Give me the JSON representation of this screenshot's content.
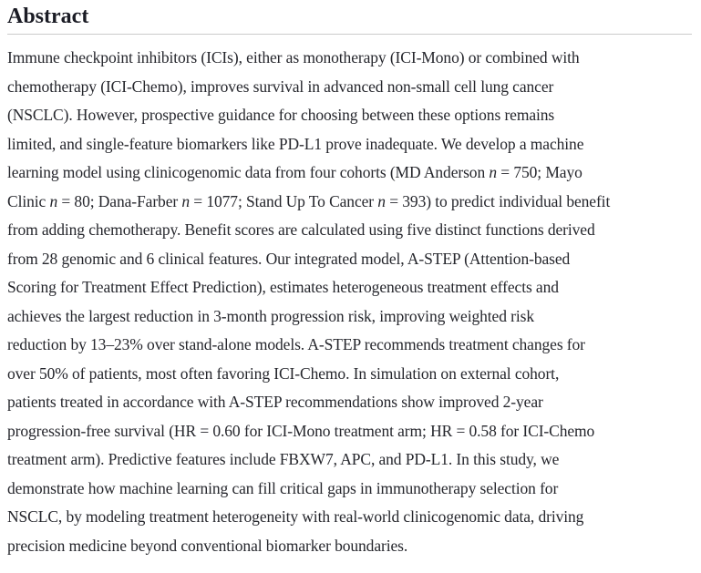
{
  "abstract": {
    "heading": "Abstract",
    "lines": [
      "Immune checkpoint inhibitors (ICIs), either as monotherapy (ICI-Mono) or combined with",
      "chemotherapy (ICI-Chemo), improves survival in advanced non-small cell lung cancer",
      "(NSCLC). However, prospective guidance for choosing between these options remains",
      "limited, and single-feature biomarkers like PD-L1 prove inadequate. We develop a machine",
      "learning model using clinicogenomic data from four cohorts (MD Anderson n = 750; Mayo",
      "Clinic n = 80; Dana-Farber n = 1077; Stand Up To Cancer n = 393) to predict individual benefit",
      "from adding chemotherapy. Benefit scores are calculated using five distinct functions derived",
      "from 28 genomic and 6 clinical features. Our integrated model, A-STEP (Attention-based",
      "Scoring for Treatment Effect Prediction), estimates heterogeneous treatment effects and",
      "achieves the largest reduction in 3-month progression risk, improving weighted risk",
      "reduction by 13–23% over stand-alone models. A-STEP recommends treatment changes for",
      "over 50% of patients, most often favoring ICI-Chemo. In simulation on external cohort,",
      "patients treated in accordance with A-STEP recommendations show improved 2-year",
      "progression-free survival (HR = 0.60 for ICI-Mono treatment arm; HR = 0.58 for ICI-Chemo",
      "treatment arm). Predictive features include FBXW7, APC, and PD-L1. In this study, we",
      "demonstrate how machine learning can fill critical gaps in immunotherapy selection for",
      "NSCLC, by modeling treatment heterogeneity with real-world clinicogenomic data, driving",
      "precision medicine beyond conventional biomarker boundaries."
    ]
  },
  "colors": {
    "heading_text": "#1b1c25",
    "body_text": "#25262c",
    "divider": "#cbcbcb",
    "background": "#ffffff"
  }
}
